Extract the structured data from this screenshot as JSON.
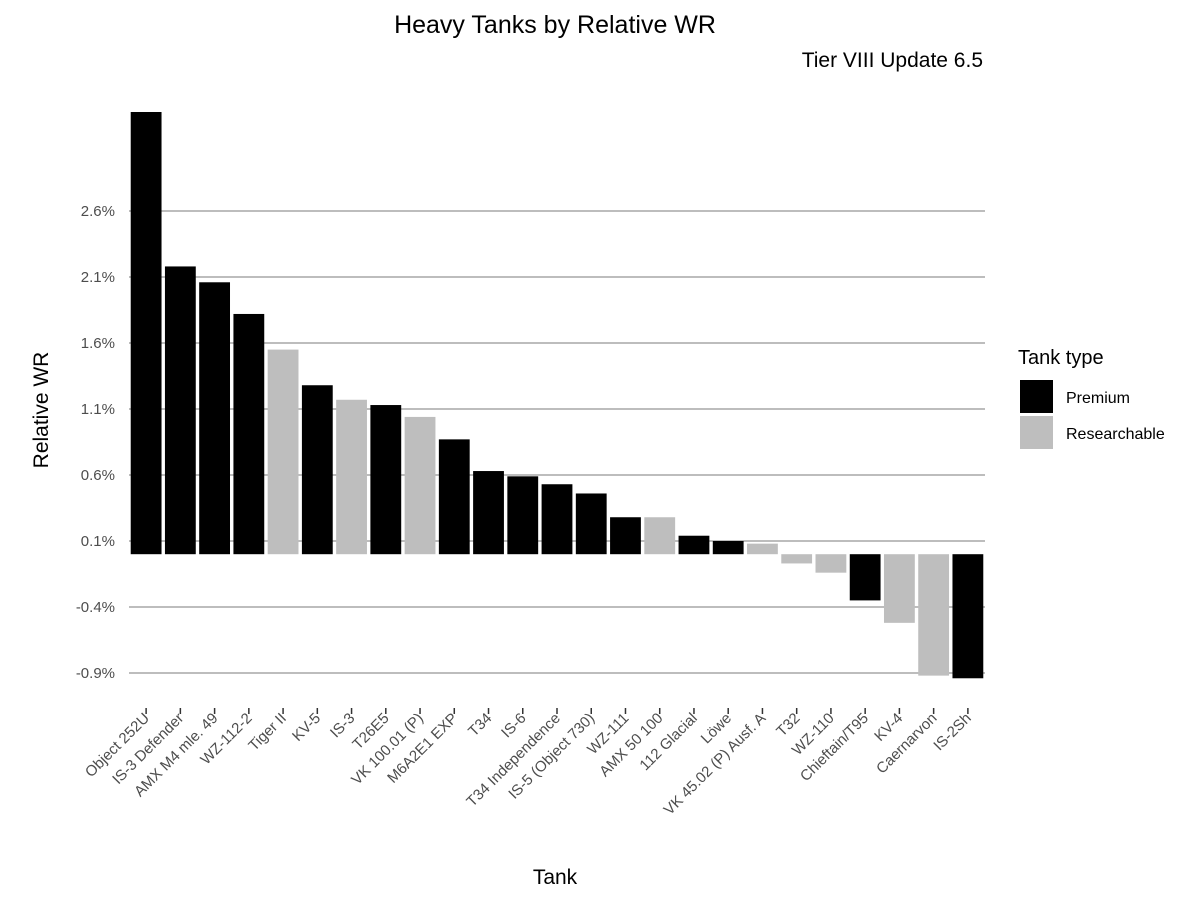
{
  "chart_data": {
    "type": "bar",
    "title": "Heavy Tanks by Relative WR",
    "subtitle": "Tier VIII Update 6.5",
    "xlabel": "Tank",
    "ylabel": "Relative WR",
    "ylim": [
      -0.98,
      3.35
    ],
    "yticks": [
      -0.9,
      -0.4,
      0.1,
      0.6,
      1.1,
      1.6,
      2.1,
      2.6
    ],
    "ytick_labels": [
      "-0.9%",
      "-0.4%",
      "0.1%",
      "0.6%",
      "1.1%",
      "1.6%",
      "2.1%",
      "2.6%"
    ],
    "grid": true,
    "legend": {
      "title": "Tank type",
      "position": "right",
      "entries": [
        {
          "name": "Premium",
          "color": "#000000"
        },
        {
          "name": "Researchable",
          "color": "#bebebe"
        }
      ]
    },
    "categories": [
      "Object 252U",
      "IS-3 Defender",
      "AMX M4 mle. 49",
      "WZ-112-2",
      "Tiger II",
      "KV-5",
      "IS-3",
      "T26E5",
      "VK 100.01 (P)",
      "M6A2E1 EXP",
      "T34",
      "IS-6",
      "T34 Independence",
      "IS-5 (Object 730)",
      "WZ-111",
      "AMX 50 100",
      "112 Glacial",
      "Löwe",
      "VK 45.02 (P) Ausf. A",
      "T32",
      "WZ-110",
      "Chieftain/T95",
      "KV-4",
      "Caernarvon",
      "IS-2Sh"
    ],
    "values": [
      3.35,
      2.18,
      2.06,
      1.82,
      1.55,
      1.28,
      1.17,
      1.13,
      1.04,
      0.87,
      0.63,
      0.59,
      0.53,
      0.46,
      0.28,
      0.28,
      0.14,
      0.1,
      0.08,
      -0.07,
      -0.14,
      -0.35,
      -0.52,
      -0.92,
      -0.94
    ],
    "types": [
      "Premium",
      "Premium",
      "Premium",
      "Premium",
      "Researchable",
      "Premium",
      "Researchable",
      "Premium",
      "Researchable",
      "Premium",
      "Premium",
      "Premium",
      "Premium",
      "Premium",
      "Premium",
      "Researchable",
      "Premium",
      "Premium",
      "Researchable",
      "Researchable",
      "Researchable",
      "Premium",
      "Researchable",
      "Researchable",
      "Premium"
    ]
  }
}
